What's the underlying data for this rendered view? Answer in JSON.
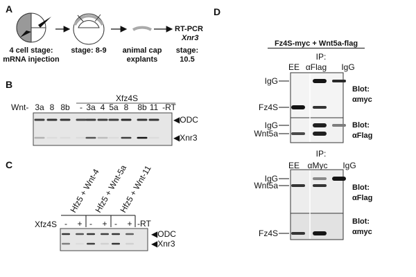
{
  "panelA": {
    "label": "A",
    "steps": [
      {
        "line1": "4 cell stage:",
        "line2": "mRNA injection"
      },
      {
        "line1": "stage: 8-9",
        "line2": ""
      },
      {
        "line1": "animal cap",
        "line2": "explants"
      },
      {
        "line1": "stage:",
        "line2": "10.5"
      }
    ],
    "readout": {
      "method": "RT-PCR",
      "gene": "Xnr3"
    }
  },
  "panelB": {
    "label": "B",
    "group_label": "Xfz4S",
    "row_label": "Wnt-",
    "lanes": [
      "3a",
      "8",
      "8b",
      "-",
      "3a",
      "4",
      "5a",
      "8",
      "8b",
      "11",
      "-RT"
    ],
    "bands": [
      {
        "name": "ODC",
        "intensity": [
          0.8,
          0.85,
          0.85,
          0.75,
          0.8,
          0.8,
          0.8,
          0.9,
          0.85,
          0.85,
          0
        ]
      },
      {
        "name": "Xnr3",
        "intensity": [
          0.25,
          0.05,
          0.05,
          0.05,
          0.7,
          0.2,
          0.05,
          0.8,
          1.0,
          0.05,
          0
        ]
      }
    ]
  },
  "panelC": {
    "label": "C",
    "row_label": "Xfz4S",
    "groups": [
      "Hfz5 + Wnt-4",
      "Hfz5 + Wnt-5a",
      "Hfz5 + Wnt-11"
    ],
    "lanes": [
      "-",
      "+",
      "-",
      "+",
      "-",
      "+",
      "-RT"
    ],
    "bands": [
      {
        "name": "ODC",
        "intensity": [
          0.85,
          0.7,
          0.85,
          0.8,
          0.85,
          0.65,
          0
        ]
      },
      {
        "name": "Xnr3",
        "intensity": [
          0.5,
          0.05,
          0.8,
          0.1,
          0.85,
          0.1,
          0
        ]
      }
    ]
  },
  "panelD": {
    "label": "D",
    "title": "Fz4S-myc + Wnt5a-flag",
    "blots": [
      {
        "ip": "IP:",
        "lanes": [
          "EE",
          "αFlag",
          "IgG"
        ],
        "panels": [
          {
            "blot": "Blot:",
            "antibody": "αmyc",
            "markers": [
              "IgG",
              "Fz4S"
            ],
            "bands": [
              {
                "name": "IgG",
                "intensity": [
                  0,
                  1,
                  0.9
                ]
              },
              {
                "name": "Fz4S",
                "intensity": [
                  1,
                  0.85,
                  0
                ]
              }
            ]
          },
          {
            "blot": "Blot:",
            "antibody": "αFlag",
            "markers": [
              "IgG",
              "Wnt5a"
            ],
            "bands": [
              {
                "name": "IgG",
                "intensity": [
                  0,
                  0.95,
                  0.5
                ]
              },
              {
                "name": "Wnt5a",
                "intensity": [
                  0.75,
                  0.95,
                  0
                ]
              }
            ]
          }
        ]
      },
      {
        "ip": "IP:",
        "lanes": [
          "EE",
          "αMyc",
          "IgG"
        ],
        "panels": [
          {
            "blot": "Blot:",
            "antibody": "αFlag",
            "markers": [
              "IgG",
              "Wnt5a"
            ],
            "bands": [
              {
                "name": "IgG",
                "intensity": [
                  0,
                  0.45,
                  1
                ]
              },
              {
                "name": "Wnt5a",
                "intensity": [
                  0.85,
                  0.85,
                  0
                ]
              }
            ]
          },
          {
            "blot": "Blot:",
            "antibody": "αmyc",
            "markers": [
              "Fz4S"
            ],
            "bands": [
              {
                "name": "Fz4S",
                "intensity": [
                  0.85,
                  1,
                  0
                ]
              }
            ]
          }
        ]
      }
    ]
  }
}
